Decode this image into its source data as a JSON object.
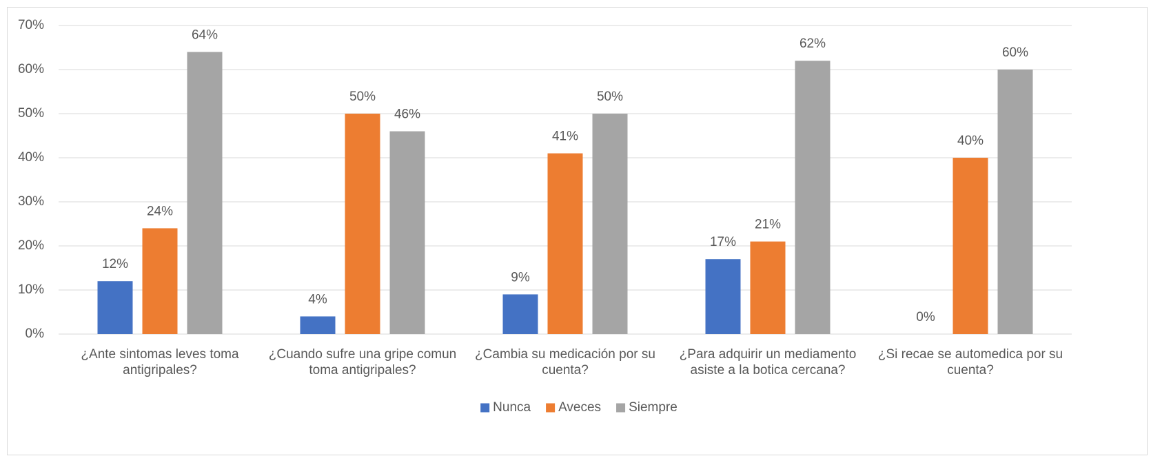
{
  "chart_data": {
    "type": "bar",
    "categories": [
      "¿Ante sintomas leves toma antigripales?",
      "¿Cuando sufre una gripe comun toma antigripales?",
      "¿Cambia su medicación por su cuenta?",
      "¿Para adquirir un mediamento asiste a la botica cercana?",
      "¿Si recae se automedica por su cuenta?"
    ],
    "series": [
      {
        "name": "Nunca",
        "color": "#4472c4",
        "values": [
          12,
          4,
          9,
          17,
          0
        ],
        "value_labels": [
          "12%",
          "4%",
          "9%",
          "17%",
          "0%"
        ]
      },
      {
        "name": "Aveces",
        "color": "#ed7d31",
        "values": [
          24,
          50,
          41,
          21,
          40
        ],
        "value_labels": [
          "24%",
          "50%",
          "41%",
          "21%",
          "40%"
        ]
      },
      {
        "name": "Siempre",
        "color": "#a5a5a5",
        "values": [
          64,
          46,
          50,
          62,
          60
        ],
        "value_labels": [
          "64%",
          "46%",
          "50%",
          "62%",
          "60%"
        ]
      }
    ],
    "ylim": [
      0,
      70
    ],
    "yticks": [
      {
        "value": 0,
        "label": "0%"
      },
      {
        "value": 10,
        "label": "10%"
      },
      {
        "value": 20,
        "label": "20%"
      },
      {
        "value": 30,
        "label": "30%"
      },
      {
        "value": 40,
        "label": "40%"
      },
      {
        "value": 50,
        "label": "50%"
      },
      {
        "value": 60,
        "label": "60%"
      },
      {
        "value": 70,
        "label": "70%"
      }
    ],
    "grid": true,
    "legend": "bottom"
  }
}
